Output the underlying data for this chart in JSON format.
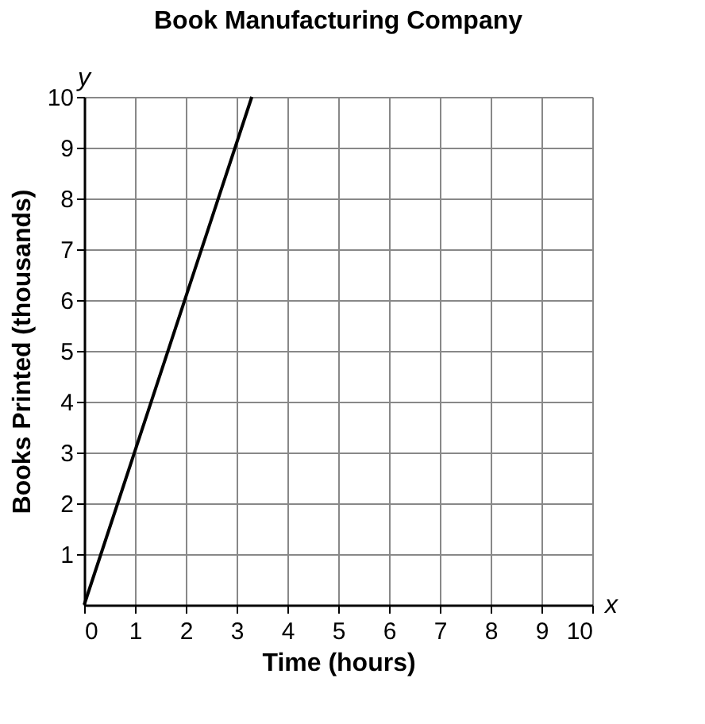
{
  "chart_data": {
    "type": "line",
    "title": "Book Manufacturing Company",
    "xlabel": "Time (hours)",
    "ylabel": "Books Printed (thousands)",
    "x": [
      0,
      3.3
    ],
    "series": [
      {
        "color": "#000000",
        "values": [
          0,
          10
        ]
      }
    ],
    "xlim": [
      0,
      10
    ],
    "xticks": [
      0,
      1,
      2,
      3,
      4,
      5,
      6,
      7,
      8,
      9,
      10
    ],
    "ylim": [
      0,
      10
    ],
    "yticks": [
      1,
      2,
      3,
      4,
      5,
      6,
      7,
      8,
      9,
      10
    ],
    "grid": true,
    "marker": "none",
    "line_style": "solid",
    "annotations": [
      "x",
      "y"
    ]
  }
}
